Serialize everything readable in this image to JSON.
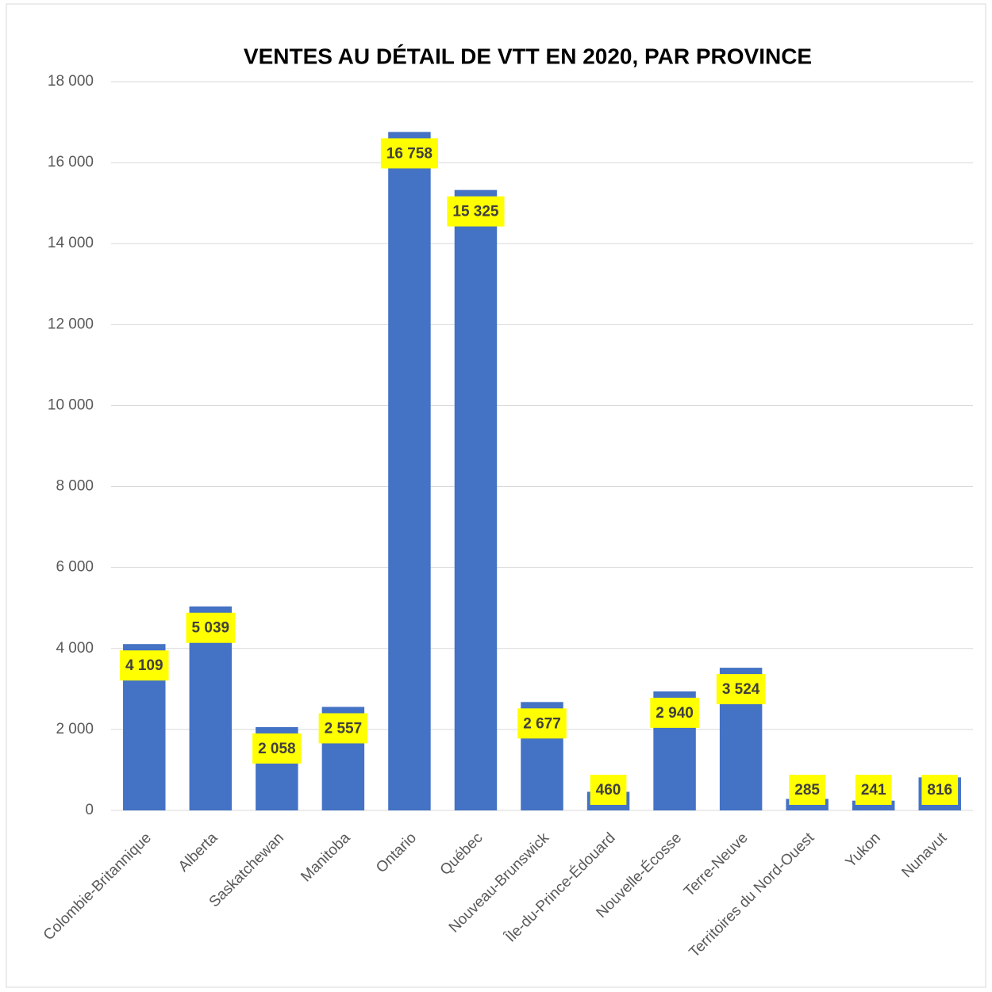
{
  "chart_data": {
    "type": "bar",
    "title": "VENTES AU DÉTAIL DE VTT EN 2020, PAR PROVINCE",
    "categories": [
      "Colombie-Britannique",
      "Alberta",
      "Saskatchewan",
      "Manitoba",
      "Ontario",
      "Québec",
      "Nouveau-Brunswick",
      "Île-du-Prince-Édouard",
      "Nouvelle-Écosse",
      "Terre-Neuve",
      "Territoires du Nord-Ouest",
      "Yukon",
      "Nunavut"
    ],
    "values": [
      4109,
      5039,
      2058,
      2557,
      16758,
      15325,
      2677,
      460,
      2940,
      3524,
      285,
      241,
      816
    ],
    "value_labels": [
      "4 109",
      "5 039",
      "2 058",
      "2 557",
      "16 758",
      "15 325",
      "2 677",
      "460",
      "2 940",
      "3 524",
      "285",
      "241",
      "816"
    ],
    "color": "#4472c4",
    "label_background": "#ffff00",
    "ylim": [
      0,
      18000
    ],
    "yticks": [
      0,
      {
        "value": 2000,
        "label": "2 000"
      },
      {
        "value": 4000,
        "label": "4 000"
      },
      {
        "value": 6000,
        "label": "6 000"
      },
      {
        "value": 8000,
        "label": "8 000"
      },
      {
        "value": 10000,
        "label": "10 000"
      },
      {
        "value": 12000,
        "label": "12 000"
      },
      {
        "value": 14000,
        "label": "14 000"
      },
      {
        "value": 16000,
        "label": "16 000"
      },
      {
        "value": 18000,
        "label": "18 000"
      }
    ],
    "grid": true
  }
}
